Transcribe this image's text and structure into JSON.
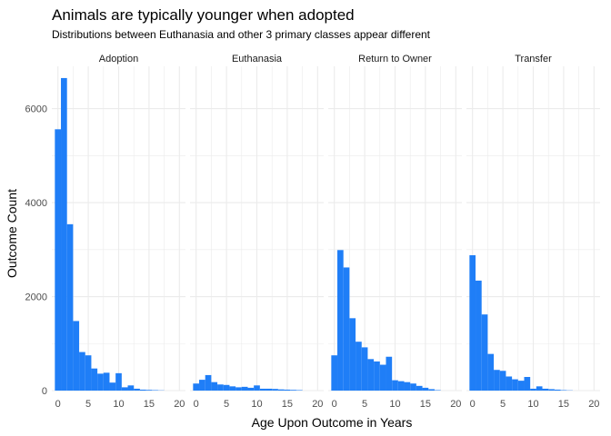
{
  "chart_data": {
    "type": "bar",
    "title": "Animals are typically younger when adopted",
    "subtitle": "Distributions between Euthanasia and other 3 primary classes appear different",
    "xlabel": "Age Upon Outcome in Years",
    "ylabel": "Outcome Count",
    "xlim": [
      -1,
      21
    ],
    "ylim": [
      0,
      6900
    ],
    "xticks": [
      0,
      5,
      10,
      15,
      20
    ],
    "yticks": [
      0,
      2000,
      4000,
      6000
    ],
    "ytick_labels": [
      "0",
      "2000",
      "4000",
      "6000"
    ],
    "grid": true,
    "bar_color": "#1f7ef7",
    "grid_color": "#ebebeb",
    "bin_width": 1,
    "bin_starts": [
      -0.5,
      0.5,
      1.5,
      2.5,
      3.5,
      4.5,
      5.5,
      6.5,
      7.5,
      8.5,
      9.5,
      10.5,
      11.5,
      12.5,
      13.5,
      14.5,
      15.5,
      16.5,
      17.5,
      18.5
    ],
    "panels": [
      {
        "name": "Adoption",
        "values": [
          5560,
          6650,
          3540,
          1480,
          820,
          750,
          470,
          360,
          380,
          170,
          370,
          70,
          110,
          40,
          20,
          15,
          10,
          5,
          0,
          0
        ]
      },
      {
        "name": "Euthanasia",
        "values": [
          150,
          230,
          330,
          180,
          130,
          120,
          90,
          70,
          80,
          60,
          110,
          40,
          40,
          35,
          25,
          20,
          15,
          10,
          0,
          0
        ]
      },
      {
        "name": "Return to Owner",
        "values": [
          750,
          2990,
          2620,
          1540,
          1040,
          920,
          670,
          620,
          550,
          720,
          220,
          200,
          180,
          150,
          100,
          60,
          30,
          10,
          0,
          0
        ]
      },
      {
        "name": "Transfer",
        "values": [
          2880,
          2340,
          1620,
          780,
          440,
          420,
          300,
          240,
          210,
          290,
          40,
          90,
          40,
          30,
          20,
          10,
          5,
          0,
          0,
          0
        ]
      }
    ]
  }
}
